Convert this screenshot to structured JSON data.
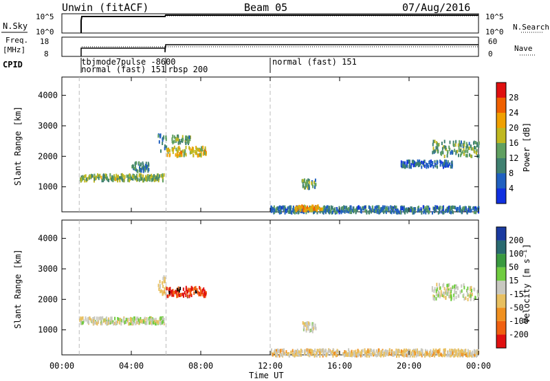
{
  "header": {
    "station": "Unwin (fitACF)",
    "beam": "Beam 05",
    "date": "07/Aug/2016"
  },
  "panels": {
    "nsky": {
      "label": "N.Sky",
      "left_ticks": [
        "10^5",
        "10^0"
      ],
      "right_label": "N.Search",
      "right_ticks": [
        "10^5",
        "10^0"
      ]
    },
    "freq": {
      "label_line1": "Freq.",
      "label_line2": "[MHz]",
      "left_ticks": [
        "18",
        "8"
      ],
      "right_label": "Nave",
      "right_ticks": [
        "60",
        "0"
      ]
    },
    "cpid": {
      "label": "CPID",
      "segments": [
        {
          "time_h": 1.0,
          "text": "tbjmode7pulse -8600",
          "row": 0
        },
        {
          "time_h": 1.0,
          "text": "normal (fast) 151",
          "row": 1
        },
        {
          "time_h": 6.0,
          "text": "rbsp 200",
          "row": 1
        },
        {
          "time_h": 12.0,
          "text": "normal (fast) 151",
          "row": 0
        }
      ]
    }
  },
  "time_axis": {
    "label": "Time UT",
    "ticks": [
      "00:00",
      "04:00",
      "08:00",
      "12:00",
      "16:00",
      "20:00",
      "00:00"
    ]
  },
  "power_panel": {
    "ylabel": "Slant Range [km]",
    "yticks": [
      "1000",
      "2000",
      "3000",
      "4000"
    ],
    "colorbar_label": "Power [dB]",
    "colorbar_ticks": [
      "4",
      "8",
      "12",
      "16",
      "20",
      "24",
      "28"
    ],
    "colors": [
      "#1030e0",
      "#2060c0",
      "#3f8070",
      "#60a060",
      "#c0b820",
      "#f0a000",
      "#f06000",
      "#e01010"
    ]
  },
  "velocity_panel": {
    "ylabel": "Slant Range [km]",
    "yticks": [
      "1000",
      "2000",
      "3000",
      "4000"
    ],
    "colorbar_label": "Velocity [m s⁻¹]",
    "colorbar_ticks": [
      "200",
      "100",
      "50",
      "15",
      "-15",
      "-50",
      "-100",
      "-200"
    ],
    "colors": [
      "#1a3aa0",
      "#2a6a70",
      "#3a9a40",
      "#70cc40",
      "#c8c8c0",
      "#e8c060",
      "#f09020",
      "#f06010",
      "#e01010"
    ]
  },
  "chart_data": [
    {
      "type": "heatmap",
      "title": "",
      "xlabel": "Time UT",
      "ylabel": "Slant Range [km]",
      "xlim": [
        0,
        24
      ],
      "ylim": [
        180,
        4600
      ],
      "colorbar": {
        "label": "Power [dB]",
        "range": [
          0,
          30
        ]
      },
      "features": [
        {
          "time_start": 1.0,
          "time_end": 5.9,
          "range_center": 1350,
          "range_width": 200,
          "value": 14
        },
        {
          "time_start": 4.0,
          "time_end": 5.0,
          "range_center": 1700,
          "range_width": 300,
          "value": 10
        },
        {
          "time_start": 5.5,
          "time_end": 6.0,
          "range_center": 2500,
          "range_width": 600,
          "value": 9
        },
        {
          "time_start": 6.0,
          "time_end": 8.3,
          "range_center": 2200,
          "range_width": 300,
          "value": 18
        },
        {
          "time_start": 6.3,
          "time_end": 7.4,
          "range_center": 2600,
          "range_width": 250,
          "value": 12
        },
        {
          "time_start": 12.0,
          "time_end": 24.0,
          "range_center": 300,
          "range_width": 200,
          "value": 8
        },
        {
          "time_start": 13.4,
          "time_end": 15.0,
          "range_center": 350,
          "range_width": 150,
          "value": 20
        },
        {
          "time_start": 13.8,
          "time_end": 14.6,
          "range_center": 1150,
          "range_width": 300,
          "value": 12
        },
        {
          "time_start": 21.3,
          "time_end": 24.0,
          "range_center": 2300,
          "range_width": 500,
          "value": 12
        },
        {
          "time_start": 19.5,
          "time_end": 22.5,
          "range_center": 1800,
          "range_width": 200,
          "value": 6
        }
      ]
    },
    {
      "type": "heatmap",
      "title": "",
      "xlabel": "Time UT",
      "ylabel": "Slant Range [km]",
      "xlim": [
        0,
        24
      ],
      "ylim": [
        180,
        4600
      ],
      "colorbar": {
        "label": "Velocity [m s⁻¹]",
        "range": [
          -250,
          250
        ]
      },
      "features": [
        {
          "time_start": 1.0,
          "time_end": 5.9,
          "range_center": 1350,
          "range_width": 200,
          "value": 0
        },
        {
          "time_start": 5.5,
          "time_end": 6.0,
          "range_center": 2500,
          "range_width": 600,
          "value": -30
        },
        {
          "time_start": 6.0,
          "time_end": 8.3,
          "range_center": 2300,
          "range_width": 300,
          "value": -200
        },
        {
          "time_start": 12.0,
          "time_end": 24.0,
          "range_center": 300,
          "range_width": 200,
          "value": -40
        },
        {
          "time_start": 13.8,
          "time_end": 14.6,
          "range_center": 1150,
          "range_width": 300,
          "value": 0
        },
        {
          "time_start": 21.3,
          "time_end": 24.0,
          "range_center": 2300,
          "range_width": 500,
          "value": 0
        }
      ]
    }
  ]
}
